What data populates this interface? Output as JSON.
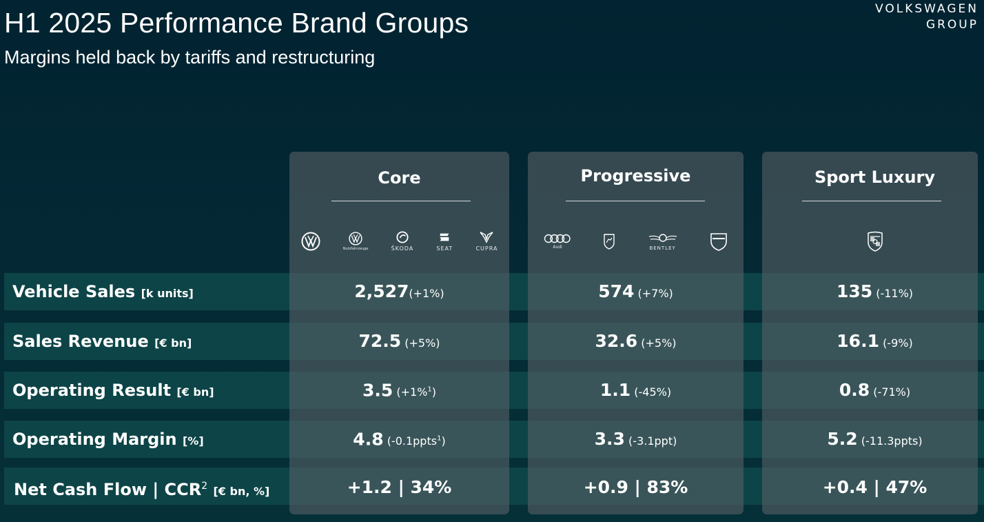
{
  "header": {
    "title": "H1 2025 Performance Brand Groups",
    "subtitle": "Margins held back by tariffs and restructuring",
    "logo_line1": "VOLKSWAGEN",
    "logo_line2": "GROUP"
  },
  "rows": [
    {
      "label": "Vehicle Sales",
      "unit": "[k units]"
    },
    {
      "label": "Sales Revenue",
      "unit": "[€ bn]"
    },
    {
      "label": "Operating Result",
      "unit": "[€ bn]"
    },
    {
      "label": "Operating Margin",
      "unit": "[%]"
    },
    {
      "label": "Net Cash Flow | CCR",
      "sup": "2",
      "unit": "[€ bn, %]"
    }
  ],
  "groups": [
    {
      "title": "Core",
      "brands": [
        "volkswagen-icon",
        "vw-commercial-icon",
        "skoda-icon",
        "seat-icon",
        "cupra-icon"
      ],
      "brand_words": {
        "commercial": "Nutzfahrzeuge",
        "skoda": "ŠKODA",
        "seat": "SEAT",
        "cupra": "CUPRA"
      },
      "vehicle_sales": {
        "value": "2,527",
        "change": "(+1%)"
      },
      "sales_revenue": {
        "value": "72.5",
        "change": "(+5%)"
      },
      "operating_result": {
        "value": "3.5",
        "change": "(+1%",
        "sup": "1",
        "close": ")"
      },
      "operating_margin": {
        "value": "4.8",
        "change": "(-0.1ppts",
        "sup": "1",
        "close": ")"
      },
      "net_cash_flow": {
        "value": "+1.2 | 34%"
      }
    },
    {
      "title": "Progressive",
      "brands": [
        "audi-icon",
        "lamborghini-icon",
        "bentley-icon",
        "ducati-icon"
      ],
      "brand_words": {
        "audi": "Audi",
        "bentley": "BENTLEY"
      },
      "vehicle_sales": {
        "value": "574",
        "change": "(+7%)"
      },
      "sales_revenue": {
        "value": "32.6",
        "change": "(+5%)"
      },
      "operating_result": {
        "value": "1.1",
        "change": "(-45%)"
      },
      "operating_margin": {
        "value": "3.3",
        "change": "(-3.1ppt)"
      },
      "net_cash_flow": {
        "value": "+0.9 | 83%"
      }
    },
    {
      "title": "Sport Luxury",
      "brands": [
        "porsche-icon"
      ],
      "vehicle_sales": {
        "value": "135",
        "change": "(-11%)"
      },
      "sales_revenue": {
        "value": "16.1",
        "change": "(-9%)"
      },
      "operating_result": {
        "value": "0.8",
        "change": "(-71%)"
      },
      "operating_margin": {
        "value": "5.2",
        "change": "(-11.3ppts)"
      },
      "net_cash_flow": {
        "value": "+0.4 | 47%"
      }
    }
  ],
  "colors": {
    "background": "#022331",
    "row_band": "#0d4447",
    "panel": "#555f64",
    "text": "#ffffff"
  }
}
